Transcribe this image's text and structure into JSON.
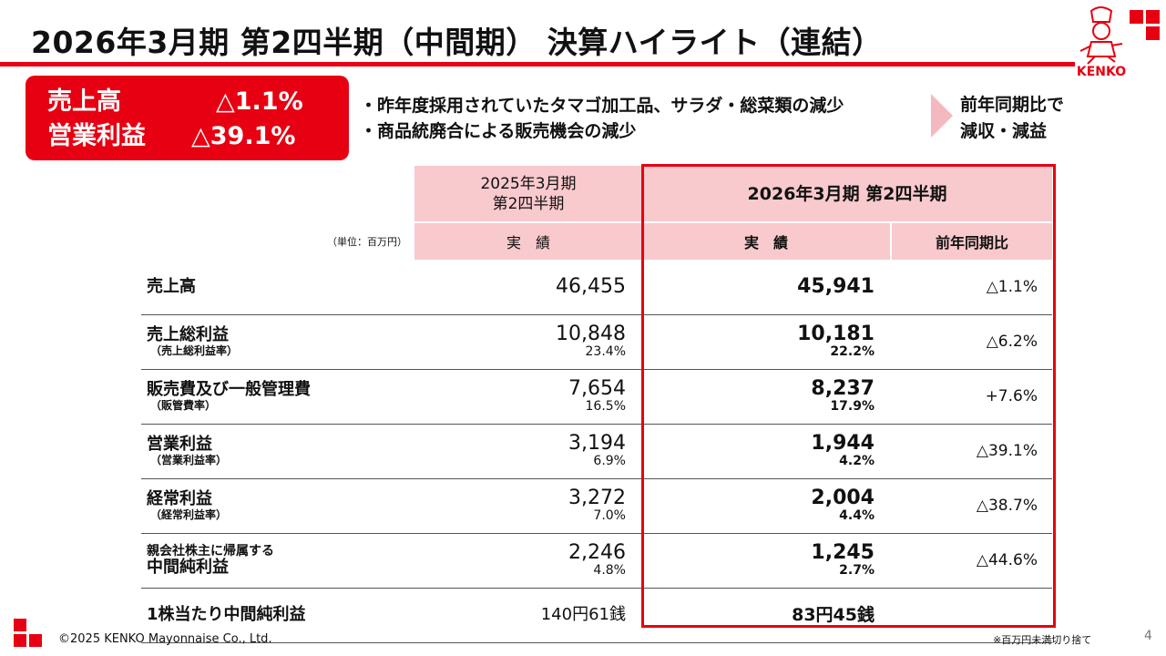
{
  "header": {
    "title": "2026年3月期 第2四半期（中間期） 決算ハイライト（連結）",
    "logo_text": "KENKO",
    "brand_color": "#e60012"
  },
  "highlight": {
    "items": [
      {
        "label": "売上高",
        "value": "△1.1%"
      },
      {
        "label": "営業利益",
        "value": "△39.1%"
      }
    ]
  },
  "bullets": [
    "・昨年度採用されていたタマゴ加工品、サラダ・総菜類の減少",
    "・商品統廃合による販売機会の減少"
  ],
  "conclusion": [
    "前年同期比で",
    "減収・減益"
  ],
  "table": {
    "unit": "（単位：百万円）",
    "prev_header": [
      "2025年3月期",
      "第2四半期"
    ],
    "cur_header": "2026年3月期 第2四半期",
    "sub_prev": "実　績",
    "sub_cur": "実　績",
    "sub_yoy": "前年同期比",
    "rows": [
      {
        "label": "売上高",
        "sub": "",
        "prev": "46,455",
        "prev_rate": "",
        "cur": "45,941",
        "cur_rate": "",
        "yoy": "△1.1%"
      },
      {
        "label": "売上総利益",
        "sub": "（売上総利益率）",
        "prev": "10,848",
        "prev_rate": "23.4%",
        "cur": "10,181",
        "cur_rate": "22.2%",
        "yoy": "△6.2%"
      },
      {
        "label": "販売費及び一般管理費",
        "sub": "（販管費率）",
        "prev": "7,654",
        "prev_rate": "16.5%",
        "cur": "8,237",
        "cur_rate": "17.9%",
        "yoy": "+7.6%"
      },
      {
        "label": "営業利益",
        "sub": "（営業利益率）",
        "prev": "3,194",
        "prev_rate": "6.9%",
        "cur": "1,944",
        "cur_rate": "4.2%",
        "yoy": "△39.1%"
      },
      {
        "label": "経常利益",
        "sub": "（経常利益率）",
        "prev": "3,272",
        "prev_rate": "7.0%",
        "cur": "2,004",
        "cur_rate": "4.4%",
        "yoy": "△38.7%"
      },
      {
        "pre": "親会社株主に帰属する",
        "label": "中間純利益",
        "sub": "",
        "prev": "2,246",
        "prev_rate": "4.8%",
        "cur": "1,245",
        "cur_rate": "2.7%",
        "yoy": "△44.6%"
      },
      {
        "label": "1株当たり中間純利益",
        "sub": "",
        "prev": "140円61銭",
        "prev_rate": "",
        "cur": "83円45銭",
        "cur_rate": "",
        "yoy": ""
      }
    ]
  },
  "footer": {
    "copyright": "©2025 KENKO Mayonnaise Co., Ltd.",
    "note": "※百万円未満切り捨て",
    "page": "4"
  }
}
